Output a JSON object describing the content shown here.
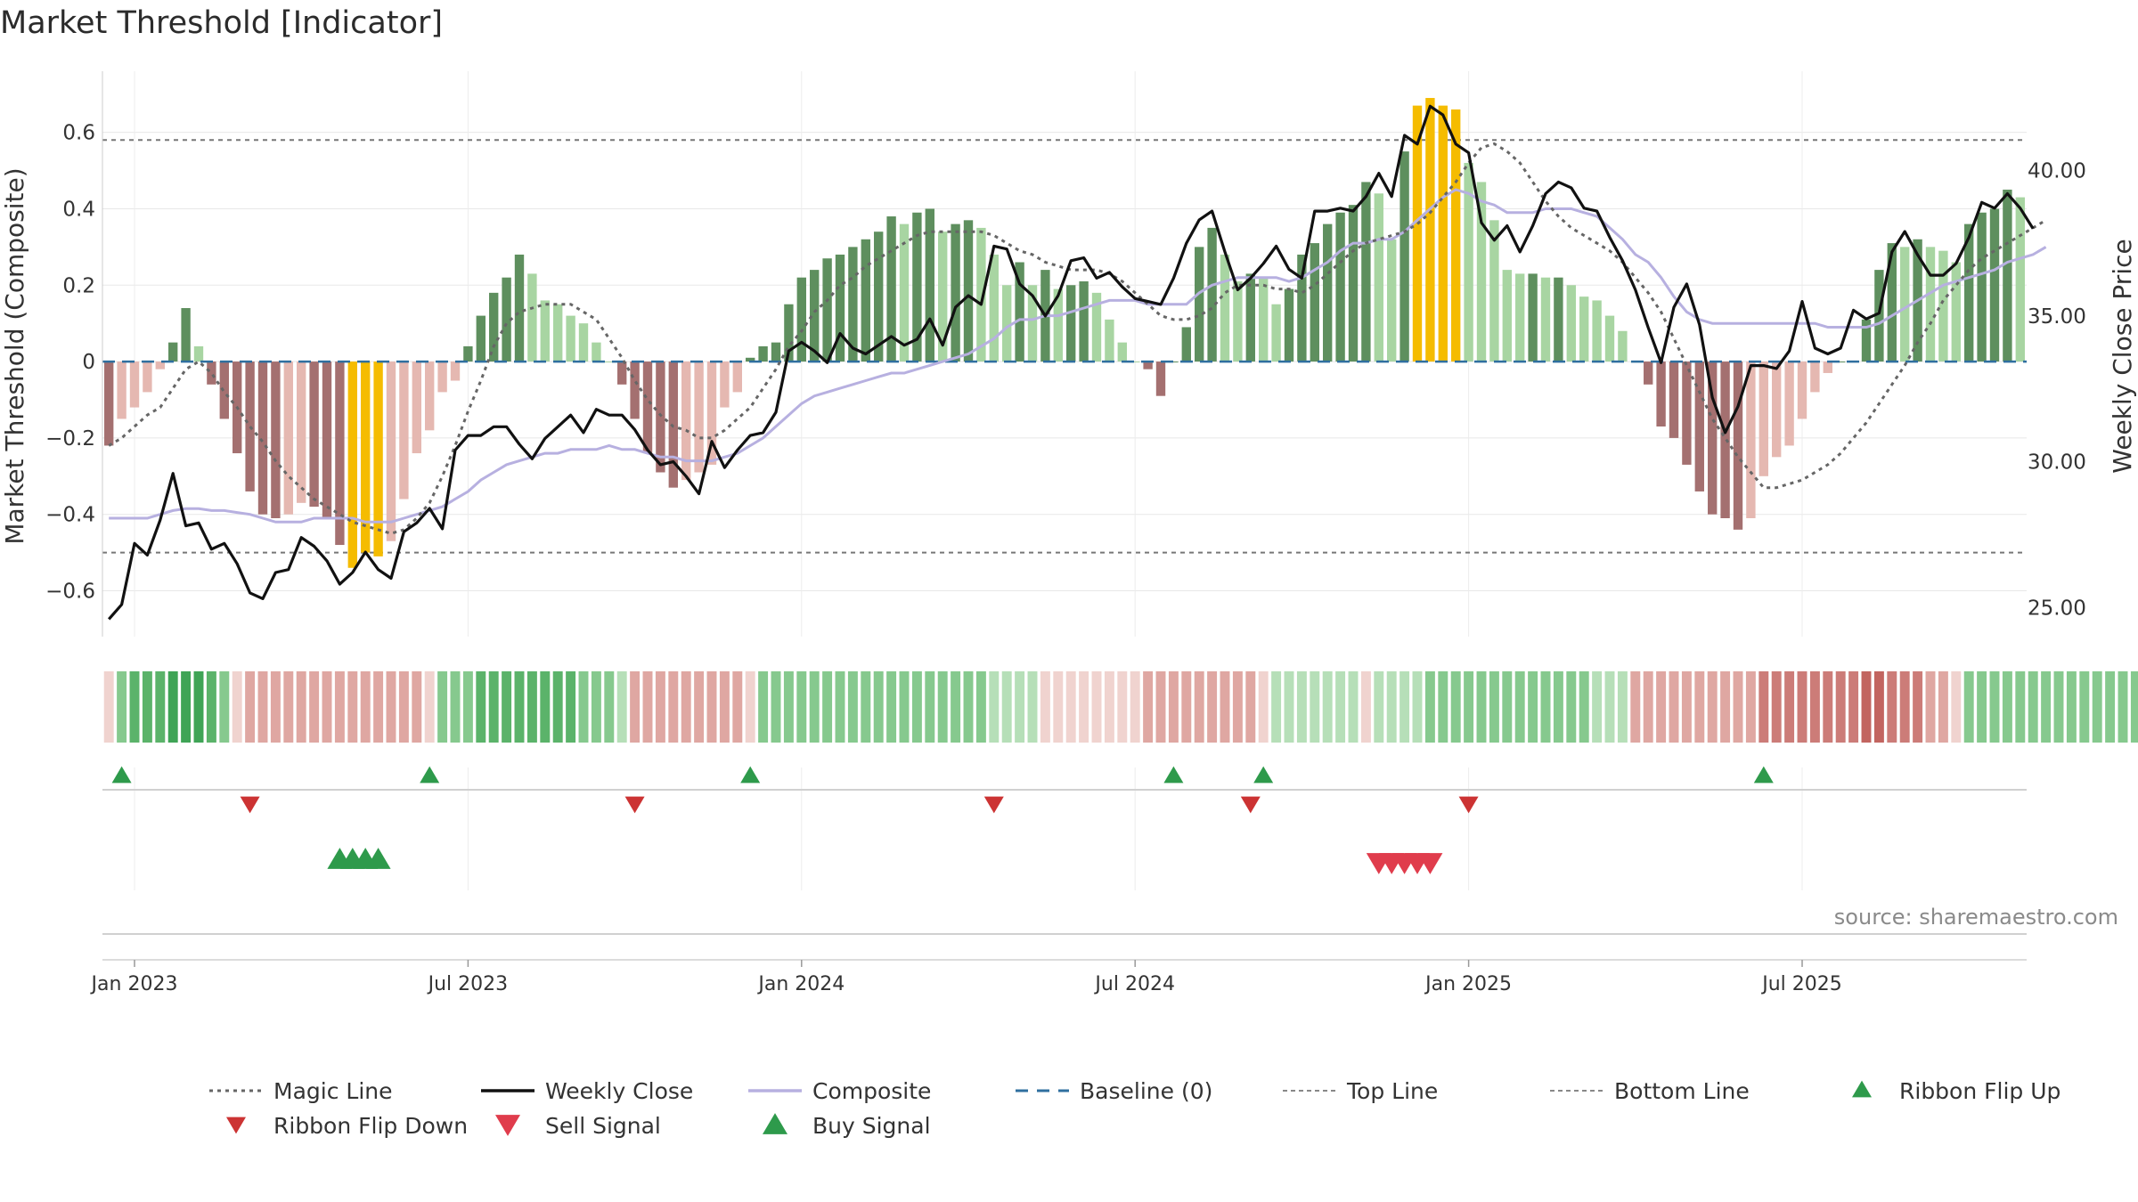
{
  "chart_data": {
    "type": "bar",
    "title": "Market Threshold [Indicator]",
    "ylabel": "Market Threshold (Composite)",
    "y2label": "Weekly Close Price",
    "ylim": [
      -0.72,
      0.76
    ],
    "y2lim": [
      24.0,
      43.4
    ],
    "yticks": [
      0.6,
      0.4,
      0.2,
      0,
      -0.2,
      -0.4,
      -0.6
    ],
    "ytick_labels": [
      "0.6",
      "0.4",
      "0.2",
      "0",
      "−0.2",
      "−0.4",
      "−0.6"
    ],
    "y2ticks": [
      40,
      35,
      30,
      25
    ],
    "y2tick_labels": [
      "40.00",
      "35.00",
      "30.00",
      "25.00"
    ],
    "xticks": [
      "Jan 2023",
      "Jul 2023",
      "Jan 2024",
      "Jul 2024",
      "Jan 2025",
      "Jul 2025"
    ],
    "xtick_weeks": [
      2,
      28,
      54,
      80,
      106,
      132
    ],
    "top_line": 0.58,
    "bottom_line": -0.5,
    "baseline": 0,
    "grid": true,
    "legend_position": "bottom",
    "source": "source: sharemaestro.com",
    "legend": [
      {
        "label": "Magic Line",
        "kind": "dotted"
      },
      {
        "label": "Weekly Close",
        "kind": "solid"
      },
      {
        "label": "Composite",
        "kind": "composite"
      },
      {
        "label": "Baseline (0)",
        "kind": "dashed"
      },
      {
        "label": "Top Line",
        "kind": "dotted-light"
      },
      {
        "label": "Bottom Line",
        "kind": "dotted-light"
      },
      {
        "label": "Ribbon Flip Up",
        "kind": "tri-up"
      },
      {
        "label": "Ribbon Flip Down",
        "kind": "tri-down"
      },
      {
        "label": "Sell Signal",
        "kind": "tri-down-big"
      },
      {
        "label": "Buy Signal",
        "kind": "tri-up-big"
      }
    ],
    "colors": {
      "bar_pos_dark": "#5e8f5e",
      "bar_pos_light": "#a8d5a2",
      "bar_neg_dark": "#a47070",
      "bar_neg_light": "#e5b8b1",
      "bar_extreme": "#f5bc00",
      "weekly_close": "#111111",
      "composite": "#b7b0e0",
      "magic_line": "#666666",
      "baseline": "#2f6f9f",
      "threshold_line": "#777777",
      "flip_up": "#2e9a4b",
      "flip_down": "#cc3333",
      "buy": "#2e9a4b",
      "sell": "#e03c4c"
    },
    "bars": [
      -0.22,
      -0.15,
      -0.12,
      -0.08,
      -0.02,
      0.05,
      0.14,
      0.04,
      -0.06,
      -0.15,
      -0.24,
      -0.34,
      -0.4,
      -0.41,
      -0.4,
      -0.37,
      -0.38,
      -0.41,
      -0.48,
      -0.54,
      -0.5,
      -0.51,
      -0.47,
      -0.36,
      -0.24,
      -0.18,
      -0.08,
      -0.05,
      0.04,
      0.12,
      0.18,
      0.22,
      0.28,
      0.23,
      0.16,
      0.15,
      0.12,
      0.1,
      0.05,
      0.0,
      -0.06,
      -0.15,
      -0.24,
      -0.29,
      -0.33,
      -0.31,
      -0.29,
      -0.27,
      -0.12,
      -0.08,
      0.01,
      0.04,
      0.05,
      0.15,
      0.22,
      0.24,
      0.27,
      0.28,
      0.3,
      0.32,
      0.34,
      0.38,
      0.36,
      0.39,
      0.4,
      0.34,
      0.36,
      0.37,
      0.35,
      0.28,
      0.2,
      0.26,
      0.2,
      0.24,
      0.19,
      0.2,
      0.21,
      0.18,
      0.11,
      0.05,
      0.0,
      -0.02,
      -0.09,
      0.0,
      0.09,
      0.3,
      0.35,
      0.28,
      0.21,
      0.23,
      0.22,
      0.15,
      0.19,
      0.28,
      0.31,
      0.36,
      0.39,
      0.41,
      0.47,
      0.44,
      0.32,
      0.55,
      0.67,
      0.69,
      0.67,
      0.66,
      0.52,
      0.47,
      0.37,
      0.24,
      0.23,
      0.23,
      0.22,
      0.22,
      0.2,
      0.17,
      0.16,
      0.12,
      0.08,
      0.0,
      -0.06,
      -0.17,
      -0.2,
      -0.27,
      -0.34,
      -0.4,
      -0.41,
      -0.44,
      -0.41,
      -0.3,
      -0.25,
      -0.22,
      -0.15,
      -0.08,
      -0.03,
      0.0,
      0.0,
      0.11,
      0.24,
      0.31,
      0.3,
      0.32,
      0.3,
      0.29,
      0.26,
      0.36,
      0.39,
      0.4,
      0.45,
      0.43
    ],
    "magic_line": [
      -0.22,
      -0.2,
      -0.17,
      -0.14,
      -0.12,
      -0.07,
      -0.02,
      0.0,
      -0.03,
      -0.08,
      -0.12,
      -0.17,
      -0.21,
      -0.26,
      -0.3,
      -0.33,
      -0.36,
      -0.38,
      -0.4,
      -0.42,
      -0.43,
      -0.44,
      -0.45,
      -0.44,
      -0.41,
      -0.37,
      -0.3,
      -0.22,
      -0.13,
      -0.05,
      0.04,
      0.1,
      0.13,
      0.14,
      0.15,
      0.15,
      0.15,
      0.13,
      0.11,
      0.06,
      0.01,
      -0.05,
      -0.1,
      -0.14,
      -0.17,
      -0.18,
      -0.2,
      -0.2,
      -0.18,
      -0.15,
      -0.12,
      -0.07,
      -0.02,
      0.04,
      0.08,
      0.13,
      0.16,
      0.2,
      0.22,
      0.25,
      0.27,
      0.29,
      0.31,
      0.33,
      0.34,
      0.34,
      0.34,
      0.34,
      0.34,
      0.33,
      0.31,
      0.29,
      0.28,
      0.26,
      0.25,
      0.24,
      0.24,
      0.24,
      0.23,
      0.21,
      0.18,
      0.15,
      0.12,
      0.11,
      0.11,
      0.12,
      0.14,
      0.18,
      0.2,
      0.2,
      0.2,
      0.19,
      0.19,
      0.18,
      0.2,
      0.23,
      0.26,
      0.29,
      0.31,
      0.32,
      0.33,
      0.34,
      0.36,
      0.39,
      0.43,
      0.47,
      0.52,
      0.56,
      0.57,
      0.55,
      0.52,
      0.47,
      0.42,
      0.38,
      0.35,
      0.33,
      0.31,
      0.29,
      0.26,
      0.22,
      0.18,
      0.13,
      0.06,
      -0.01,
      -0.08,
      -0.15,
      -0.2,
      -0.25,
      -0.29,
      -0.33,
      -0.33,
      -0.32,
      -0.31,
      -0.29,
      -0.27,
      -0.24,
      -0.2,
      -0.16,
      -0.11,
      -0.06,
      -0.01,
      0.05,
      0.1,
      0.16,
      0.2,
      0.24,
      0.27,
      0.29,
      0.31,
      0.33,
      0.35,
      0.37
    ],
    "weekly_close": [
      24.6,
      25.1,
      27.2,
      26.8,
      28.0,
      29.6,
      27.8,
      27.9,
      27.0,
      27.2,
      26.5,
      25.5,
      25.3,
      26.2,
      26.3,
      27.4,
      27.1,
      26.6,
      25.8,
      26.2,
      26.9,
      26.3,
      26.0,
      27.6,
      27.9,
      28.4,
      27.7,
      30.4,
      30.9,
      30.9,
      31.2,
      31.2,
      30.6,
      30.1,
      30.8,
      31.2,
      31.6,
      31.0,
      31.8,
      31.6,
      31.6,
      31.1,
      30.4,
      29.9,
      30.0,
      29.5,
      28.9,
      30.7,
      29.8,
      30.4,
      30.9,
      31.0,
      31.7,
      33.8,
      34.1,
      33.8,
      33.4,
      34.4,
      33.9,
      33.7,
      34.0,
      34.3,
      34.0,
      34.2,
      34.9,
      34.0,
      35.3,
      35.7,
      35.4,
      37.4,
      37.3,
      36.1,
      35.7,
      35.0,
      35.7,
      36.9,
      37.0,
      36.3,
      36.5,
      36.0,
      35.6,
      35.5,
      35.4,
      36.3,
      37.5,
      38.3,
      38.6,
      37.2,
      35.9,
      36.3,
      36.8,
      37.4,
      36.6,
      36.3,
      38.6,
      38.6,
      38.7,
      38.6,
      39.1,
      39.9,
      39.1,
      41.2,
      40.9,
      42.2,
      41.9,
      40.9,
      40.6,
      38.2,
      37.6,
      38.1,
      37.2,
      38.1,
      39.2,
      39.6,
      39.4,
      38.7,
      38.6,
      37.7,
      36.9,
      35.9,
      34.6,
      33.4,
      35.3,
      36.1,
      34.7,
      32.2,
      31.0,
      31.9,
      33.3,
      33.3,
      33.2,
      33.8,
      35.5,
      33.9,
      33.7,
      33.9,
      35.2,
      34.9,
      35.1,
      37.2,
      37.9,
      37.1,
      36.4,
      36.4,
      36.8,
      37.7,
      38.9,
      38.7,
      39.2,
      38.7,
      38.0
    ],
    "composite": [
      -0.41,
      -0.41,
      -0.41,
      -0.41,
      -0.4,
      -0.39,
      -0.385,
      -0.385,
      -0.39,
      -0.39,
      -0.395,
      -0.4,
      -0.41,
      -0.42,
      -0.42,
      -0.42,
      -0.41,
      -0.41,
      -0.41,
      -0.41,
      -0.42,
      -0.42,
      -0.42,
      -0.41,
      -0.4,
      -0.39,
      -0.38,
      -0.36,
      -0.34,
      -0.31,
      -0.29,
      -0.27,
      -0.26,
      -0.25,
      -0.24,
      -0.24,
      -0.23,
      -0.23,
      -0.23,
      -0.22,
      -0.23,
      -0.23,
      -0.24,
      -0.25,
      -0.25,
      -0.26,
      -0.26,
      -0.26,
      -0.25,
      -0.24,
      -0.22,
      -0.2,
      -0.17,
      -0.14,
      -0.11,
      -0.09,
      -0.08,
      -0.07,
      -0.06,
      -0.05,
      -0.04,
      -0.03,
      -0.03,
      -0.02,
      -0.01,
      0.0,
      0.01,
      0.02,
      0.04,
      0.06,
      0.09,
      0.11,
      0.11,
      0.12,
      0.12,
      0.13,
      0.14,
      0.15,
      0.16,
      0.16,
      0.16,
      0.15,
      0.15,
      0.15,
      0.15,
      0.18,
      0.2,
      0.21,
      0.22,
      0.22,
      0.22,
      0.22,
      0.21,
      0.22,
      0.24,
      0.26,
      0.29,
      0.31,
      0.31,
      0.32,
      0.32,
      0.34,
      0.37,
      0.4,
      0.43,
      0.45,
      0.44,
      0.42,
      0.41,
      0.39,
      0.39,
      0.39,
      0.4,
      0.4,
      0.4,
      0.39,
      0.38,
      0.35,
      0.32,
      0.28,
      0.26,
      0.22,
      0.17,
      0.13,
      0.11,
      0.1,
      0.1,
      0.1,
      0.1,
      0.1,
      0.1,
      0.1,
      0.1,
      0.1,
      0.09,
      0.09,
      0.09,
      0.09,
      0.1,
      0.12,
      0.14,
      0.16,
      0.18,
      0.2,
      0.21,
      0.22,
      0.23,
      0.24,
      0.26,
      0.27,
      0.28,
      0.3
    ],
    "ribbon": [
      -1,
      2,
      3,
      3,
      3,
      4,
      4,
      4,
      3,
      2,
      -1,
      -2,
      -2,
      -2,
      -2,
      -2,
      -2,
      -2,
      -2,
      -2,
      -2,
      -2,
      -2,
      -2,
      -2,
      -1,
      2,
      2,
      2,
      3,
      3,
      3,
      3,
      3,
      3,
      3,
      3,
      2,
      2,
      2,
      1,
      -2,
      -2,
      -2,
      -2,
      -2,
      -2,
      -2,
      -2,
      -2,
      -1,
      2,
      2,
      2,
      2,
      2,
      2,
      2,
      2,
      2,
      2,
      2,
      2,
      2,
      2,
      2,
      2,
      2,
      2,
      1,
      1,
      1,
      1,
      -1,
      -1,
      -1,
      -1,
      -1,
      -1,
      -1,
      -1,
      -2,
      -2,
      -2,
      -2,
      -2,
      -2,
      -2,
      -2,
      -2,
      -1,
      1,
      1,
      1,
      1,
      1,
      1,
      1,
      -1,
      1,
      1,
      1,
      1,
      2,
      2,
      2,
      2,
      2,
      2,
      2,
      2,
      2,
      2,
      2,
      2,
      2,
      1,
      1,
      1,
      -2,
      -2,
      -2,
      -2,
      -2,
      -2,
      -2,
      -2,
      -2,
      -2,
      -3,
      -3,
      -3,
      -3,
      -3,
      -3,
      -3,
      -3,
      -4,
      -4,
      -3,
      -3,
      -3,
      -2,
      -2,
      -1,
      2,
      2,
      2,
      2,
      2,
      2,
      2,
      2,
      2,
      2,
      2,
      2,
      2,
      2
    ],
    "flip_up": [
      1,
      25,
      50,
      83,
      90,
      129
    ],
    "flip_down": [
      11,
      41,
      69,
      89,
      106
    ],
    "buy_signals": [
      18,
      19,
      20,
      21
    ],
    "sell_signals": [
      99,
      100,
      101,
      102,
      103
    ]
  }
}
